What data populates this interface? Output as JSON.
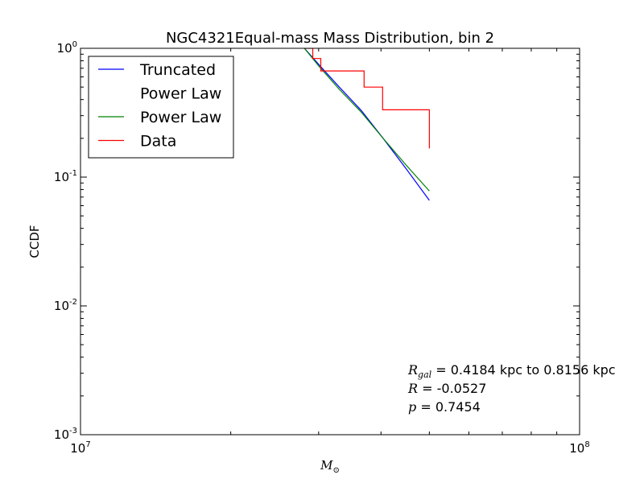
{
  "chart_data": {
    "type": "line",
    "title": "NGC4321Equal-mass Mass Distribution, bin 2",
    "xlabel": "M",
    "xlabel_sub": "⊙",
    "ylabel": "CCDF",
    "xscale": "log",
    "yscale": "log",
    "xlim": [
      10000000,
      100000000
    ],
    "ylim": [
      0.001,
      1
    ],
    "x_ticks": [
      {
        "base": "10",
        "exp": "7"
      },
      {
        "base": "10",
        "exp": "8"
      }
    ],
    "y_ticks": [
      {
        "base": "10",
        "exp": "0"
      },
      {
        "base": "10",
        "exp": "-1"
      },
      {
        "base": "10",
        "exp": "-2"
      },
      {
        "base": "10",
        "exp": "-3"
      }
    ],
    "legend_position": "top-left",
    "series": [
      {
        "name": "Truncated Power Law",
        "legend_lines": [
          "Truncated",
          "Power Law"
        ],
        "color": "#0000ff",
        "style": "line",
        "x": [
          28100000,
          30100000,
          33000000,
          36500000,
          40400000,
          45000000,
          50000000
        ],
        "y": [
          1.0,
          0.74,
          0.5,
          0.33,
          0.2,
          0.115,
          0.066
        ]
      },
      {
        "name": "Power Law",
        "legend_lines": [
          "Power Law"
        ],
        "color": "#008000",
        "style": "line",
        "x": [
          28100000,
          30100000,
          33000000,
          36500000,
          40400000,
          45000000,
          50000000
        ],
        "y": [
          1.0,
          0.72,
          0.48,
          0.32,
          0.2,
          0.123,
          0.078
        ]
      },
      {
        "name": "Data",
        "legend_lines": [
          "Data"
        ],
        "color": "#ff0000",
        "style": "step",
        "x": [
          28100000,
          29200000,
          30300000,
          37000000,
          40300000,
          50000000
        ],
        "y": [
          1.0,
          0.833,
          0.667,
          0.5,
          0.333,
          0.167
        ]
      }
    ],
    "annotations": [
      {
        "sym": "R",
        "sub": "gal",
        "text": " = 0.4184 kpc to 0.8156 kpc"
      },
      {
        "sym": "R",
        "sub": "",
        "text": " = -0.0527"
      },
      {
        "sym": "p",
        "sub": "",
        "text": " = 0.7454"
      }
    ]
  }
}
